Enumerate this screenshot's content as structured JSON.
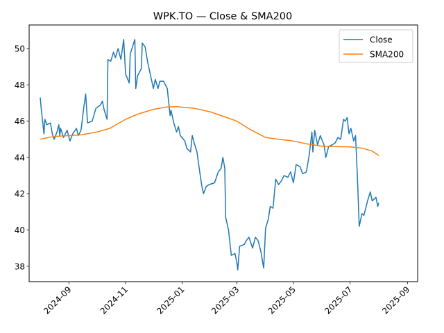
{
  "chart_data": {
    "type": "line",
    "title": "WPK.TO — Close & SMA200",
    "xlabel": "",
    "ylabel": "",
    "x_ticks": [
      "2024-09",
      "2024-11",
      "2025-01",
      "2025-03",
      "2025-05",
      "2025-07",
      "2025-09"
    ],
    "y_ticks": [
      38,
      40,
      42,
      44,
      46,
      48,
      50
    ],
    "xlim": [
      "2024-07-20",
      "2025-09-12"
    ],
    "ylim": [
      37.15,
      51.3
    ],
    "legend_position": "top-right",
    "series": [
      {
        "name": "Close",
        "color": "#1f77b4",
        "points": [
          [
            "2024-08-01",
            47.3
          ],
          [
            "2024-08-02",
            46.7
          ],
          [
            "2024-08-05",
            45.3
          ],
          [
            "2024-08-06",
            46.1
          ],
          [
            "2024-08-08",
            45.8
          ],
          [
            "2024-08-12",
            45.9
          ],
          [
            "2024-08-14",
            45.3
          ],
          [
            "2024-08-16",
            45.0
          ],
          [
            "2024-08-19",
            45.4
          ],
          [
            "2024-08-21",
            45.8
          ],
          [
            "2024-08-22",
            45.2
          ],
          [
            "2024-08-23",
            45.6
          ],
          [
            "2024-08-26",
            45.1
          ],
          [
            "2024-08-30",
            45.5
          ],
          [
            "2024-09-02",
            44.9
          ],
          [
            "2024-09-05",
            45.3
          ],
          [
            "2024-09-09",
            45.6
          ],
          [
            "2024-09-11",
            45.2
          ],
          [
            "2024-09-14",
            45.5
          ],
          [
            "2024-09-17",
            46.8
          ],
          [
            "2024-09-19",
            47.5
          ],
          [
            "2024-09-21",
            45.9
          ],
          [
            "2024-09-26",
            46.0
          ],
          [
            "2024-09-30",
            46.7
          ],
          [
            "2024-10-05",
            46.9
          ],
          [
            "2024-10-07",
            47.1
          ],
          [
            "2024-10-09",
            46.6
          ],
          [
            "2024-10-12",
            46.1
          ],
          [
            "2024-10-13",
            49.4
          ],
          [
            "2024-10-16",
            49.3
          ],
          [
            "2024-10-19",
            49.8
          ],
          [
            "2024-10-21",
            49.5
          ],
          [
            "2024-10-24",
            50.0
          ],
          [
            "2024-10-27",
            49.4
          ],
          [
            "2024-10-30",
            50.5
          ],
          [
            "2024-11-01",
            48.6
          ],
          [
            "2024-11-05",
            48.1
          ],
          [
            "2024-11-06",
            49.7
          ],
          [
            "2024-11-11",
            50.5
          ],
          [
            "2024-11-12",
            47.8
          ],
          [
            "2024-11-14",
            48.5
          ],
          [
            "2024-11-18",
            48.9
          ],
          [
            "2024-11-19",
            50.3
          ],
          [
            "2024-11-22",
            50.1
          ],
          [
            "2024-11-25",
            49.2
          ],
          [
            "2024-11-28",
            48.5
          ],
          [
            "2024-12-01",
            47.8
          ],
          [
            "2024-12-03",
            48.3
          ],
          [
            "2024-12-06",
            47.8
          ],
          [
            "2024-12-08",
            48.2
          ],
          [
            "2024-12-12",
            48.2
          ],
          [
            "2024-12-16",
            47.8
          ],
          [
            "2024-12-19",
            46.3
          ],
          [
            "2024-12-20",
            46.6
          ],
          [
            "2024-12-23",
            45.9
          ],
          [
            "2024-12-26",
            45.4
          ],
          [
            "2024-12-28",
            45.7
          ],
          [
            "2024-12-30",
            45.2
          ],
          [
            "2025-01-04",
            44.9
          ],
          [
            "2025-01-06",
            44.5
          ],
          [
            "2025-01-10",
            44.3
          ],
          [
            "2025-01-12",
            45.2
          ],
          [
            "2025-01-14",
            44.8
          ],
          [
            "2025-01-17",
            44.3
          ],
          [
            "2025-01-20",
            43.2
          ],
          [
            "2025-01-22",
            42.5
          ],
          [
            "2025-01-24",
            42.0
          ],
          [
            "2025-01-27",
            42.4
          ],
          [
            "2025-01-30",
            42.5
          ],
          [
            "2025-02-05",
            42.6
          ],
          [
            "2025-02-09",
            43.2
          ],
          [
            "2025-02-12",
            43.4
          ],
          [
            "2025-02-14",
            44.0
          ],
          [
            "2025-02-16",
            43.4
          ],
          [
            "2025-02-17",
            40.7
          ],
          [
            "2025-02-20",
            40.0
          ],
          [
            "2025-02-23",
            38.6
          ],
          [
            "2025-02-27",
            38.7
          ],
          [
            "2025-03-01",
            38.2
          ],
          [
            "2025-03-02",
            37.8
          ],
          [
            "2025-03-04",
            39.1
          ],
          [
            "2025-03-09",
            39.2
          ],
          [
            "2025-03-11",
            39.4
          ],
          [
            "2025-03-14",
            39.6
          ],
          [
            "2025-03-18",
            39.0
          ],
          [
            "2025-03-21",
            39.6
          ],
          [
            "2025-03-24",
            39.4
          ],
          [
            "2025-03-27",
            38.8
          ],
          [
            "2025-03-30",
            37.9
          ],
          [
            "2025-04-01",
            40.1
          ],
          [
            "2025-04-04",
            40.6
          ],
          [
            "2025-04-06",
            41.3
          ],
          [
            "2025-04-09",
            41.2
          ],
          [
            "2025-04-12",
            42.8
          ],
          [
            "2025-04-15",
            42.5
          ],
          [
            "2025-04-18",
            42.7
          ],
          [
            "2025-04-21",
            43.0
          ],
          [
            "2025-04-25",
            42.9
          ],
          [
            "2025-04-28",
            43.2
          ],
          [
            "2025-05-01",
            42.6
          ],
          [
            "2025-05-04",
            43.6
          ],
          [
            "2025-05-08",
            43.5
          ],
          [
            "2025-05-11",
            43.1
          ],
          [
            "2025-05-15",
            43.2
          ],
          [
            "2025-05-18",
            44.1
          ],
          [
            "2025-05-21",
            45.4
          ],
          [
            "2025-05-22",
            44.3
          ],
          [
            "2025-05-24",
            45.5
          ],
          [
            "2025-05-27",
            44.7
          ],
          [
            "2025-05-30",
            45.2
          ],
          [
            "2025-06-03",
            44.7
          ],
          [
            "2025-06-05",
            44.0
          ],
          [
            "2025-06-08",
            44.6
          ],
          [
            "2025-06-12",
            44.7
          ],
          [
            "2025-06-15",
            44.8
          ],
          [
            "2025-06-18",
            45.1
          ],
          [
            "2025-06-21",
            45.0
          ],
          [
            "2025-06-24",
            46.1
          ],
          [
            "2025-06-26",
            46.0
          ],
          [
            "2025-06-28",
            46.2
          ],
          [
            "2025-06-30",
            45.3
          ],
          [
            "2025-07-02",
            45.6
          ],
          [
            "2025-07-05",
            44.9
          ],
          [
            "2025-07-07",
            45.2
          ],
          [
            "2025-07-09",
            43.0
          ],
          [
            "2025-07-11",
            40.2
          ],
          [
            "2025-07-14",
            40.9
          ],
          [
            "2025-07-16",
            40.8
          ],
          [
            "2025-07-20",
            41.6
          ],
          [
            "2025-07-23",
            42.1
          ],
          [
            "2025-07-25",
            41.6
          ],
          [
            "2025-07-29",
            41.8
          ],
          [
            "2025-07-31",
            41.3
          ],
          [
            "2025-08-01",
            41.5
          ]
        ]
      },
      {
        "name": "SMA200",
        "color": "#ff7f0e",
        "points": [
          [
            "2024-08-01",
            45.0
          ],
          [
            "2024-08-15",
            45.15
          ],
          [
            "2024-09-01",
            45.2
          ],
          [
            "2024-09-15",
            45.25
          ],
          [
            "2024-10-01",
            45.4
          ],
          [
            "2024-10-15",
            45.6
          ],
          [
            "2024-11-01",
            46.1
          ],
          [
            "2024-11-15",
            46.4
          ],
          [
            "2024-12-01",
            46.65
          ],
          [
            "2024-12-15",
            46.78
          ],
          [
            "2024-12-26",
            46.8
          ],
          [
            "2025-01-15",
            46.7
          ],
          [
            "2025-02-01",
            46.5
          ],
          [
            "2025-02-15",
            46.25
          ],
          [
            "2025-03-01",
            46.0
          ],
          [
            "2025-03-15",
            45.55
          ],
          [
            "2025-04-01",
            45.1
          ],
          [
            "2025-04-15",
            45.0
          ],
          [
            "2025-05-01",
            44.9
          ],
          [
            "2025-05-15",
            44.75
          ],
          [
            "2025-06-01",
            44.62
          ],
          [
            "2025-06-15",
            44.6
          ],
          [
            "2025-07-01",
            44.58
          ],
          [
            "2025-07-15",
            44.5
          ],
          [
            "2025-07-25",
            44.35
          ],
          [
            "2025-08-01",
            44.1
          ]
        ]
      }
    ]
  }
}
